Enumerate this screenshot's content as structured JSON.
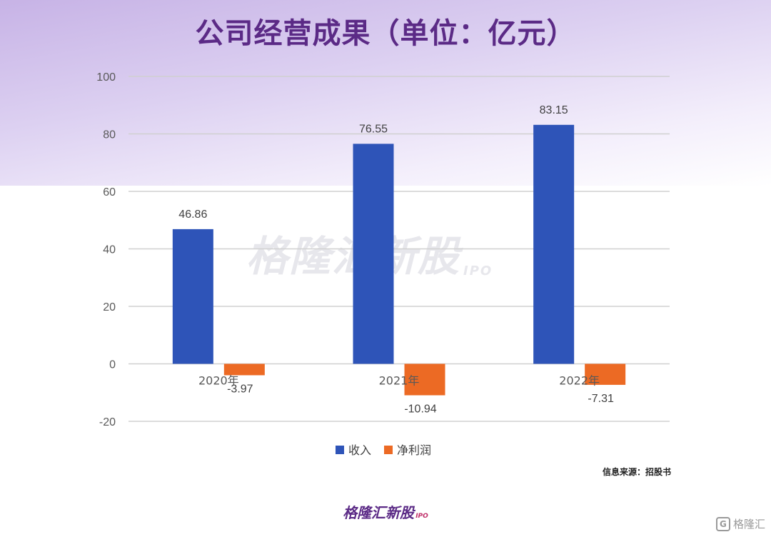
{
  "title": "公司经营成果（单位：亿元）",
  "source_note": "信息来源：招股书",
  "watermark": {
    "text": "格隆汇新股",
    "suffix": "IPO"
  },
  "footer_logo": {
    "text": "格隆汇新股",
    "suffix": "IPO"
  },
  "corner_logo": {
    "text": "格隆汇",
    "icon": "G"
  },
  "chart_data": {
    "type": "bar",
    "categories": [
      "2020年",
      "2021年",
      "2022年"
    ],
    "series": [
      {
        "name": "收入",
        "values": [
          46.86,
          76.55,
          83.15
        ],
        "color": "#2e54b8"
      },
      {
        "name": "净利润",
        "values": [
          -3.97,
          -10.94,
          -7.31
        ],
        "color": "#ec6a24"
      }
    ],
    "ylim": [
      -20,
      100
    ],
    "yticks": [
      -20,
      0,
      20,
      40,
      60,
      80,
      100
    ],
    "grid": true,
    "legend": "bottom"
  }
}
